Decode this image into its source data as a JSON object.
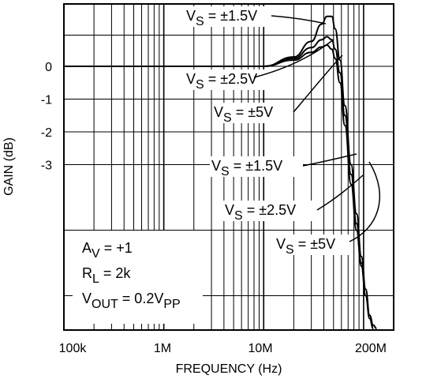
{
  "chart_data": {
    "type": "line",
    "title": "",
    "xlabel": "FREQUENCY (Hz)",
    "ylabel": "GAIN (dB)",
    "x_scale": "log",
    "xlim": [
      100000,
      200000000
    ],
    "ylim": [
      -8,
      2
    ],
    "x_tick_labels": [
      {
        "value": 100000,
        "label": "100k"
      },
      {
        "value": 1000000,
        "label": "1M"
      },
      {
        "value": 10000000,
        "label": "10M"
      },
      {
        "value": 200000000,
        "label": "200M"
      }
    ],
    "y_tick_labels": [
      {
        "value": 0,
        "label": "0"
      },
      {
        "value": -1,
        "label": "-1"
      },
      {
        "value": -2,
        "label": "-2"
      },
      {
        "value": -3,
        "label": "-3"
      }
    ],
    "grid": true,
    "series": [
      {
        "name": "VS = ±1.5V",
        "x": [
          100000,
          10000000,
          20000000,
          30000000,
          38000000,
          43000000,
          48000000,
          52000000,
          58000000,
          65000000,
          75000000,
          85000000,
          95000000,
          105000000,
          115000000,
          125000000
        ],
        "y": [
          0,
          0,
          0.3,
          0.8,
          1.35,
          1.6,
          1.6,
          1.2,
          0.2,
          -1.2,
          -3,
          -4.5,
          -5.8,
          -6.8,
          -7.6,
          -8
        ]
      },
      {
        "name": "VS = ±2.5V",
        "x": [
          100000,
          10000000,
          20000000,
          30000000,
          38000000,
          43000000,
          48000000,
          52000000,
          58000000,
          65000000,
          75000000,
          85000000,
          95000000,
          105000000,
          115000000,
          125000000
        ],
        "y": [
          0,
          0,
          0.25,
          0.6,
          0.85,
          0.95,
          0.85,
          0.55,
          -0.2,
          -1.5,
          -3.3,
          -4.8,
          -6,
          -7,
          -7.7,
          -8
        ]
      },
      {
        "name": "VS = ±5V",
        "x": [
          100000,
          10000000,
          20000000,
          30000000,
          38000000,
          43000000,
          48000000,
          52000000,
          58000000,
          65000000,
          75000000,
          85000000,
          95000000,
          105000000,
          115000000,
          125000000,
          135000000
        ],
        "y": [
          0,
          0,
          0.2,
          0.45,
          0.62,
          0.68,
          0.55,
          0.25,
          -0.5,
          -1.8,
          -3.6,
          -5,
          -6.1,
          -7,
          -7.6,
          -7.9,
          -8
        ]
      }
    ],
    "curve_labels": [
      {
        "text": "VS = ±1.5V",
        "main": "V",
        "sub": "S",
        "rest": " = ±1.5V"
      },
      {
        "text": "VS = ±2.5V",
        "main": "V",
        "sub": "S",
        "rest": " = ±2.5V"
      },
      {
        "text": "VS = ±5V",
        "main": "V",
        "sub": "S",
        "rest": " = ±5V"
      },
      {
        "text": "VS = ±1.5V",
        "main": "V",
        "sub": "S",
        "rest": " = ±1.5V"
      },
      {
        "text": "VS = ±2.5V",
        "main": "V",
        "sub": "S",
        "rest": " = ±2.5V"
      },
      {
        "text": "VS = ±5V",
        "main": "V",
        "sub": "S",
        "rest": " = ±5V"
      }
    ],
    "conditions": [
      {
        "main": "A",
        "sub": "V",
        "rest": " = +1",
        "rest_sub": ""
      },
      {
        "main": "R",
        "sub": "L",
        "rest": " = 2k",
        "rest_sub": ""
      },
      {
        "main": "V",
        "sub": "OUT",
        "rest": " = 0.2V",
        "rest_sub": "PP"
      }
    ]
  }
}
